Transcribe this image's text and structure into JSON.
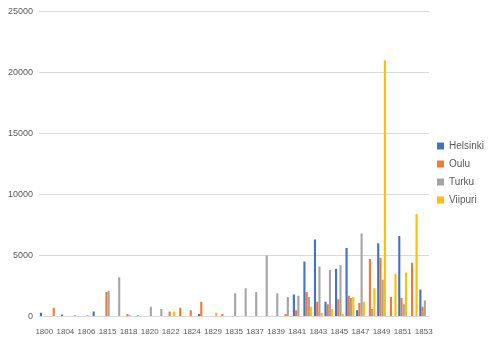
{
  "chart_data": {
    "type": "bar",
    "categories": [
      "1800",
      null,
      "1804",
      null,
      "1806",
      null,
      "1815",
      null,
      "1818",
      null,
      "1820",
      null,
      "1822",
      null,
      "1824",
      null,
      "1829",
      null,
      "1835",
      null,
      "1837",
      null,
      "1839",
      null,
      "1841",
      null,
      "1843",
      null,
      "1845",
      null,
      "1847",
      null,
      "1849",
      null,
      "1851",
      null,
      "1853"
    ],
    "series": [
      {
        "name": "Helsinki",
        "color": "#4472c4",
        "values": [
          300,
          0,
          150,
          0,
          0,
          400,
          0,
          0,
          0,
          0,
          0,
          0,
          0,
          0,
          0,
          200,
          0,
          0,
          0,
          0,
          0,
          0,
          0,
          0,
          1800,
          4500,
          6300,
          1200,
          3900,
          5600,
          500,
          0,
          6000,
          0,
          6600,
          0,
          2200
        ]
      },
      {
        "name": "Oulu",
        "color": "#ed7d31",
        "values": [
          0,
          700,
          0,
          100,
          0,
          0,
          2000,
          0,
          200,
          100,
          0,
          0,
          400,
          700,
          500,
          1200,
          0,
          200,
          0,
          0,
          0,
          0,
          0,
          200,
          500,
          2000,
          1200,
          1000,
          1400,
          1700,
          1100,
          4700,
          4800,
          1600,
          1500,
          4400,
          800
        ]
      },
      {
        "name": "Turku",
        "color": "#a5a5a5",
        "values": [
          0,
          0,
          0,
          0,
          100,
          0,
          2100,
          3200,
          100,
          0,
          800,
          600,
          0,
          0,
          0,
          0,
          0,
          0,
          1900,
          2300,
          2000,
          5000,
          1900,
          1600,
          1700,
          1600,
          4100,
          3800,
          4200,
          1500,
          6800,
          600,
          3000,
          0,
          1000,
          0,
          1300
        ]
      },
      {
        "name": "Viipuri",
        "color": "#ffc000",
        "values": [
          0,
          0,
          0,
          0,
          0,
          0,
          0,
          0,
          0,
          0,
          0,
          0,
          400,
          0,
          0,
          0,
          300,
          0,
          0,
          0,
          0,
          0,
          0,
          0,
          0,
          800,
          300,
          600,
          200,
          1600,
          1200,
          2300,
          21000,
          3500,
          3600,
          8400,
          0
        ]
      }
    ],
    "ylim": [
      0,
      25000
    ],
    "yticks": [
      0,
      5000,
      10000,
      15000,
      20000,
      25000
    ],
    "grid": true,
    "legend": "right"
  }
}
